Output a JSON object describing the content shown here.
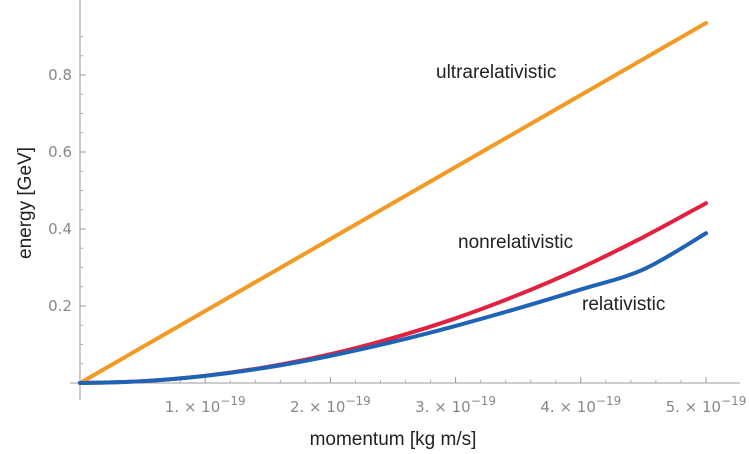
{
  "chart_data": {
    "type": "line",
    "xlabel": "momentum [kg m/s]",
    "ylabel": "energy  [GeV]",
    "xlim": [
      0,
      5e-19
    ],
    "ylim": [
      -0.05,
      0.95
    ],
    "x_ticks": [
      {
        "value": 1e-19,
        "mantissa": "1.",
        "base": "10",
        "exp": "−19"
      },
      {
        "value": 2e-19,
        "mantissa": "2.",
        "base": "10",
        "exp": "−19"
      },
      {
        "value": 3e-19,
        "mantissa": "3.",
        "base": "10",
        "exp": "−19"
      },
      {
        "value": 4e-19,
        "mantissa": "4.",
        "base": "10",
        "exp": "−19"
      },
      {
        "value": 5e-19,
        "mantissa": "5.",
        "base": "10",
        "exp": "−19"
      }
    ],
    "y_ticks": [
      {
        "value": 0.2,
        "label": "0.2"
      },
      {
        "value": 0.4,
        "label": "0.4"
      },
      {
        "value": 0.6,
        "label": "0.6"
      },
      {
        "value": 0.8,
        "label": "0.8"
      }
    ],
    "grid": false,
    "legend": "none",
    "series": [
      {
        "name": "ultrarelativistic",
        "color": "#F29A24",
        "x": [
          0,
          1e-19,
          2e-19,
          3e-19,
          4e-19,
          5e-19
        ],
        "values": [
          0,
          0.187,
          0.374,
          0.561,
          0.748,
          0.935
        ]
      },
      {
        "name": "nonrelativistic",
        "color": "#E0213F",
        "x": [
          0,
          5e-20,
          1e-19,
          1.5e-19,
          2e-19,
          2.5e-19,
          3e-19,
          3.5e-19,
          4e-19,
          4.5e-19,
          5e-19
        ],
        "values": [
          0,
          0.0047,
          0.0187,
          0.042,
          0.0748,
          0.117,
          0.168,
          0.229,
          0.299,
          0.379,
          0.467
        ]
      },
      {
        "name": "relativistic",
        "color": "#1F63B4",
        "x": [
          0,
          5e-20,
          1e-19,
          1.5e-19,
          2e-19,
          2.5e-19,
          3e-19,
          3.5e-19,
          4e-19,
          4.5e-19,
          5e-19
        ],
        "values": [
          0,
          0.0047,
          0.0185,
          0.0406,
          0.0705,
          0.1068,
          0.1483,
          0.194,
          0.243,
          0.295,
          0.389
        ]
      }
    ],
    "annotations": [
      {
        "text": "ultrarelativistic",
        "series": "ultrarelativistic"
      },
      {
        "text": "nonrelativistic",
        "series": "nonrelativistic"
      },
      {
        "text": "relativistic",
        "series": "relativistic"
      }
    ]
  }
}
